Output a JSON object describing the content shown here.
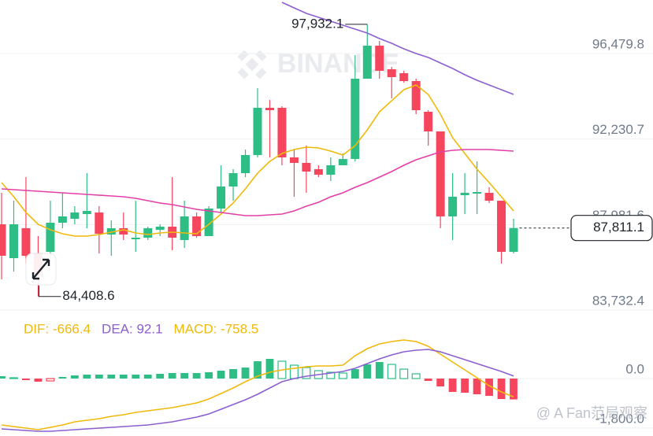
{
  "chart_data": [
    {
      "type": "candlestick",
      "watermark": "BINANCE",
      "open": [
        87995,
        86314,
        87800,
        86548,
        86627,
        88073,
        88269,
        88503,
        88581,
        87487,
        87800,
        87252,
        87330,
        87721,
        87878,
        87213,
        88386,
        87408,
        88777,
        89872,
        90537,
        91437,
        93783,
        93783,
        91319,
        91045,
        90733,
        90459,
        90928,
        91239,
        95228,
        96870,
        95698,
        95502,
        95111,
        93587,
        92609,
        88386,
        89442,
        89520,
        89559,
        89168,
        86627
      ],
      "high": [
        89559,
        89168,
        90341,
        87409,
        89168,
        89559,
        88894,
        90537,
        88894,
        88190,
        88581,
        89168,
        87878,
        87995,
        90341,
        89168,
        88581,
        88894,
        90928,
        90733,
        91709,
        94759,
        94173,
        93860,
        91709,
        91905,
        90928,
        91319,
        91514,
        96401,
        97932.1,
        97105,
        95815,
        95619,
        95228,
        93665,
        92609,
        90537,
        90537,
        91123,
        89833,
        89168,
        88269
      ],
      "low": [
        85258,
        85649,
        86040,
        84408.6,
        86236,
        87800,
        87995,
        87800,
        86548,
        86431,
        87213,
        86627,
        87213,
        87409,
        86705,
        86822,
        87330,
        87408,
        88581,
        89168,
        90341,
        91319,
        91319,
        90928,
        89363,
        89559,
        90341,
        90145,
        90928,
        91123,
        95228,
        95228,
        94251,
        95033,
        93469,
        91905,
        87800,
        87213,
        88503,
        88503,
        89050,
        86040,
        86548
      ],
      "close": [
        86431,
        87995,
        86431,
        85453,
        88073,
        88386,
        88581,
        88659,
        87526,
        87800,
        87487,
        87330,
        87800,
        87878,
        87330,
        88386,
        87408,
        88777,
        89872,
        90537,
        91437,
        93783,
        93665,
        91319,
        91045,
        90615,
        90459,
        90928,
        91239,
        95228,
        96870,
        95620,
        95307,
        95111,
        93665,
        92609,
        88386,
        89364,
        89559,
        89598,
        89168,
        86627,
        87811.1
      ],
      "up_color": "#2ebd85",
      "down_color": "#f6465d",
      "series": [
        {
          "color": "#f0b90b",
          "values": [
            90067,
            89364,
            88582,
            87995,
            87721,
            87526,
            87409,
            87409,
            87487,
            87604,
            87721,
            87565,
            87487,
            87565,
            87604,
            87565,
            87526,
            87995,
            88503,
            89051,
            89755,
            90537,
            91123,
            91514,
            91710,
            91827,
            91788,
            91631,
            91436,
            91905,
            92687,
            93586,
            94134,
            94681,
            94916,
            94447,
            93469,
            92296,
            91514,
            90732,
            90067,
            89364,
            88660
          ]
        },
        {
          "color": "#e33fa6",
          "values": [
            89755,
            89716,
            89676,
            89637,
            89598,
            89559,
            89520,
            89481,
            89442,
            89403,
            89364,
            89285,
            89168,
            89051,
            88973,
            88855,
            88738,
            88660,
            88582,
            88503,
            88425,
            88425,
            88464,
            88503,
            88660,
            88894,
            89090,
            89364,
            89559,
            89833,
            90067,
            90341,
            90615,
            90928,
            91201,
            91397,
            91592,
            91671,
            91710,
            91710,
            91710,
            91671,
            91631
          ]
        },
        {
          "color": "#8c5fd0",
          "values": [
            null,
            null,
            null,
            null,
            null,
            null,
            null,
            null,
            null,
            null,
            null,
            null,
            null,
            null,
            null,
            null,
            null,
            null,
            null,
            null,
            null,
            null,
            null,
            99021,
            98748,
            98474,
            98278,
            98083,
            97887,
            97692,
            97496,
            97223,
            96988,
            96714,
            96480,
            96284,
            96011,
            95737,
            95424,
            95150,
            94916,
            94681,
            94447
          ]
        }
      ],
      "ylim": [
        83498.6,
        99138.6
      ],
      "yticks": [
        {
          "value": 96479.8,
          "label": "96,479.8"
        },
        {
          "value": 92230.7,
          "label": "92,230.7"
        },
        {
          "value": 87981.6,
          "label": "87,981.6"
        },
        {
          "value": 83732.4,
          "label": "83,732.4"
        }
      ],
      "grid": true,
      "high_label": "97,932.1",
      "low_label": "84,408.6",
      "last_label": "87,811.1"
    },
    {
      "type": "macd",
      "watermark": "@ A Fan范局观察",
      "series": [
        {
          "name": "DIF: -666.4",
          "color": "#f0b90b",
          "values": [
            -1687,
            -1745,
            -1802,
            -1859,
            -1773,
            -1687,
            -1573,
            -1516,
            -1459,
            -1373,
            -1316,
            -1230,
            -1173,
            -1115,
            -1058,
            -972,
            -887,
            -744,
            -543,
            -343,
            -114,
            86,
            229,
            315,
            372,
            429,
            458,
            458,
            486,
            829,
            1087,
            1258,
            1344,
            1401,
            1344,
            1173,
            887,
            601,
            315,
            29,
            -257,
            -486,
            -666.4
          ]
        },
        {
          "name": "DEA: 92.1",
          "color": "#8c5fd0",
          "values": [
            -1830,
            -1859,
            -1888,
            -1916,
            -1916,
            -1888,
            -1859,
            -1830,
            -1802,
            -1773,
            -1745,
            -1716,
            -1687,
            -1630,
            -1573,
            -1487,
            -1401,
            -1287,
            -1115,
            -944,
            -772,
            -572,
            -343,
            -114,
            0,
            86,
            143,
            200,
            257,
            372,
            543,
            715,
            858,
            972,
            1030,
            1058,
            972,
            829,
            686,
            543,
            400,
            257,
            92.1
          ]
        },
        {
          "name": "MACD: -758.5",
          "color": "#2ebd85",
          "negative_color": "#f6465d",
          "values": [
            86,
            29,
            -57,
            -114,
            -86,
            57,
            114,
            143,
            143,
            143,
            143,
            143,
            143,
            172,
            200,
            200,
            200,
            229,
            286,
            343,
            400,
            629,
            715,
            629,
            486,
            400,
            286,
            229,
            200,
            343,
            515,
            601,
            515,
            343,
            172,
            -86,
            -286,
            -486,
            -515,
            -572,
            -629,
            -744,
            -758.5
          ]
        }
      ],
      "legend_colors": [
        "#f0b90b",
        "#8c5fd0",
        "#f0b90b"
      ],
      "ylim": [
        -2087.8,
        1601.6
      ],
      "yticks": [
        {
          "value": 0,
          "label": "0.0"
        },
        {
          "value": -1800,
          "label": "-1,800.0"
        }
      ],
      "grid": true
    }
  ]
}
